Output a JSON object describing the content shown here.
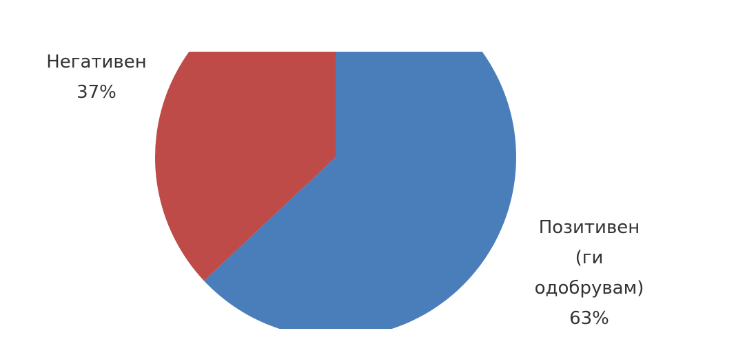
{
  "chart_data": {
    "type": "pie",
    "slices": [
      {
        "name": "Позитивен (ги одобрувам)",
        "label_lines": [
          "Позитивен",
          "(ги",
          "одобрувам)",
          "63%"
        ],
        "value": 63,
        "color": "#4A7EBB"
      },
      {
        "name": "Негативен",
        "label_lines": [
          "Негативен",
          "37%"
        ],
        "value": 37,
        "color": "#BE4B48"
      }
    ]
  }
}
